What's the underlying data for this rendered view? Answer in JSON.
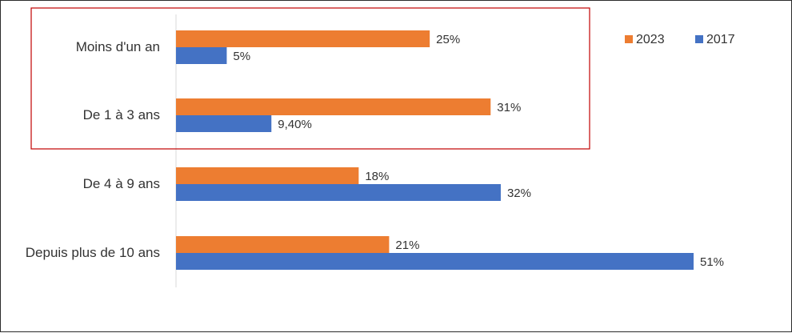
{
  "chart_data": {
    "type": "bar",
    "orientation": "horizontal",
    "categories": [
      "Moins d'un an",
      "De 1 à 3 ans",
      "De 4 à 9 ans",
      "Depuis plus de 10 ans"
    ],
    "series": [
      {
        "name": "2023",
        "color": "#ED7D31",
        "values": [
          25,
          31,
          18,
          21
        ],
        "labels": [
          "25%",
          "31%",
          "18%",
          "21%"
        ]
      },
      {
        "name": "2017",
        "color": "#4472C4",
        "values": [
          5,
          9.4,
          32,
          51
        ],
        "labels": [
          "5%",
          "9,40%",
          "32%",
          "51%"
        ]
      }
    ],
    "xlim": [
      0,
      51
    ],
    "grid": false,
    "legend_position": "top-right",
    "highlight": {
      "categories": [
        "Moins d'un an",
        "De 1 à 3 ans"
      ],
      "color": "#C00000"
    }
  }
}
